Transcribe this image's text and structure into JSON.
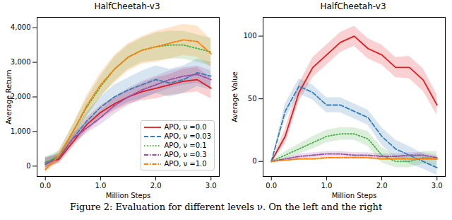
{
  "chart_data": [
    {
      "type": "line",
      "title": "HalfCheetah-v3",
      "x_label": "Million Steps",
      "y_label": "Average Return",
      "xlim": [
        -0.15,
        3.15
      ],
      "xticks": [
        0,
        1,
        2,
        3
      ],
      "ylim": [
        -300,
        4300
      ],
      "yticks": [
        0,
        1000,
        2000,
        3000,
        4000
      ],
      "legend": "lower right",
      "x": [
        0,
        0.25,
        0.5,
        0.75,
        1,
        1.25,
        1.5,
        1.75,
        2,
        2.25,
        2.5,
        2.75,
        3
      ],
      "series": [
        {
          "name": "APO, ν =0.0",
          "color": "#e41a1c",
          "line_style": "solid",
          "values": [
            100,
            200,
            700,
            1200,
            1550,
            1800,
            2000,
            2150,
            2250,
            2350,
            2450,
            2500,
            2250
          ],
          "lower": [
            -50,
            80,
            550,
            1000,
            1350,
            1600,
            1800,
            1900,
            1950,
            2050,
            2100,
            2150,
            1950
          ],
          "upper": [
            250,
            320,
            850,
            1400,
            1750,
            2000,
            2200,
            2400,
            2550,
            2650,
            2800,
            2850,
            2550
          ]
        },
        {
          "name": "APO, ν =0.03",
          "color": "#377eb8",
          "line_style": "dashed",
          "values": [
            100,
            250,
            800,
            1300,
            1700,
            2000,
            2200,
            2350,
            2500,
            2400,
            2500,
            2700,
            2600
          ],
          "lower": [
            -50,
            120,
            600,
            1050,
            1400,
            1650,
            1850,
            1950,
            2100,
            2000,
            2100,
            2300,
            2200
          ],
          "upper": [
            250,
            380,
            1000,
            1550,
            2000,
            2350,
            2550,
            2750,
            2900,
            2800,
            2900,
            3100,
            3000
          ]
        },
        {
          "name": "APO, ν =0.1",
          "color": "#4daf4a",
          "line_style": "dotted",
          "values": [
            100,
            300,
            1000,
            1700,
            2300,
            2800,
            3150,
            3350,
            3450,
            3500,
            3500,
            3400,
            3300
          ],
          "lower": [
            -50,
            150,
            800,
            1450,
            2000,
            2450,
            2800,
            3000,
            3050,
            3100,
            3100,
            3000,
            2900
          ],
          "upper": [
            250,
            450,
            1200,
            1950,
            2600,
            3150,
            3500,
            3700,
            3850,
            3900,
            3900,
            3800,
            3700
          ]
        },
        {
          "name": "APO, ν =0.3",
          "color": "#984ea3",
          "line_style": "dashdot",
          "values": [
            50,
            250,
            800,
            1100,
            1400,
            1750,
            2000,
            2200,
            2350,
            2500,
            2600,
            2650,
            2500
          ],
          "lower": [
            -100,
            120,
            650,
            950,
            1200,
            1500,
            1750,
            1950,
            2100,
            2250,
            2350,
            2400,
            2250
          ],
          "upper": [
            200,
            380,
            950,
            1250,
            1600,
            2000,
            2250,
            2450,
            2600,
            2750,
            2850,
            2900,
            2750
          ]
        },
        {
          "name": "APO, ν =1.0",
          "color": "#ff7f00",
          "line_style": "dashdot",
          "values": [
            -100,
            300,
            1000,
            1750,
            2350,
            2800,
            3150,
            3350,
            3450,
            3550,
            3650,
            3600,
            3250
          ],
          "lower": [
            -200,
            150,
            800,
            1450,
            2000,
            2400,
            2750,
            2950,
            3000,
            3100,
            3200,
            3150,
            2850
          ],
          "upper": [
            0,
            450,
            1200,
            2050,
            2700,
            3200,
            3550,
            3750,
            3900,
            4000,
            4100,
            4050,
            3650
          ]
        }
      ]
    },
    {
      "type": "line",
      "title": "HalfCheetah-v3",
      "x_label": "Million Steps",
      "y_label": "Average Value",
      "xlim": [
        -0.15,
        3.15
      ],
      "xticks": [
        0,
        1,
        2,
        3
      ],
      "ylim": [
        -12,
        115
      ],
      "yticks": [
        0,
        50,
        100
      ],
      "x": [
        0,
        0.25,
        0.5,
        0.75,
        1,
        1.25,
        1.5,
        1.75,
        2,
        2.25,
        2.5,
        2.75,
        3
      ],
      "series": [
        {
          "name": "APO, ν =0.0",
          "color": "#e41a1c",
          "line_style": "solid",
          "values": [
            0,
            20,
            55,
            75,
            85,
            95,
            100,
            90,
            85,
            75,
            75,
            65,
            45
          ],
          "lower": [
            0,
            14,
            48,
            67,
            77,
            87,
            92,
            82,
            77,
            67,
            66,
            56,
            37
          ],
          "upper": [
            0,
            26,
            62,
            83,
            93,
            103,
            108,
            98,
            93,
            83,
            84,
            74,
            53
          ]
        },
        {
          "name": "APO, ν =0.03",
          "color": "#377eb8",
          "line_style": "dashed",
          "values": [
            0,
            40,
            60,
            55,
            45,
            45,
            40,
            35,
            20,
            10,
            5,
            0,
            -5
          ],
          "lower": [
            0,
            34,
            54,
            49,
            39,
            39,
            34,
            29,
            13,
            3,
            -2,
            -6,
            -11
          ],
          "upper": [
            0,
            46,
            66,
            61,
            51,
            51,
            46,
            41,
            27,
            17,
            12,
            6,
            1
          ]
        },
        {
          "name": "APO, ν =0.1",
          "color": "#4daf4a",
          "line_style": "dotted",
          "values": [
            0,
            5,
            10,
            15,
            20,
            22,
            22,
            18,
            5,
            0,
            0,
            3,
            2
          ],
          "lower": [
            0,
            2,
            6,
            10,
            15,
            17,
            17,
            12,
            -1,
            -5,
            -5,
            -2,
            -4
          ],
          "upper": [
            0,
            8,
            14,
            20,
            25,
            27,
            27,
            24,
            11,
            5,
            5,
            8,
            8
          ]
        },
        {
          "name": "APO, ν =0.3",
          "color": "#984ea3",
          "line_style": "dashdot",
          "values": [
            0,
            2,
            4,
            5,
            6,
            6,
            5,
            5,
            4,
            4,
            5,
            5,
            3
          ],
          "lower": [
            0,
            1,
            2,
            3,
            4,
            4,
            3,
            3,
            2,
            2,
            3,
            3,
            1
          ],
          "upper": [
            0,
            3,
            6,
            7,
            8,
            8,
            7,
            7,
            6,
            6,
            7,
            7,
            5
          ]
        },
        {
          "name": "APO, ν =1.0",
          "color": "#ff7f00",
          "line_style": "dashdot",
          "values": [
            0,
            1,
            2,
            2,
            3,
            3,
            3,
            3,
            2,
            2,
            2,
            2,
            2
          ],
          "lower": [
            0,
            0,
            1,
            1,
            2,
            2,
            2,
            2,
            1,
            1,
            1,
            1,
            1
          ],
          "upper": [
            0,
            2,
            3,
            3,
            4,
            4,
            4,
            4,
            3,
            3,
            3,
            3,
            3
          ]
        }
      ]
    }
  ],
  "caption": "Figure 2: Evaluation for different levels ν. On the left and the right"
}
